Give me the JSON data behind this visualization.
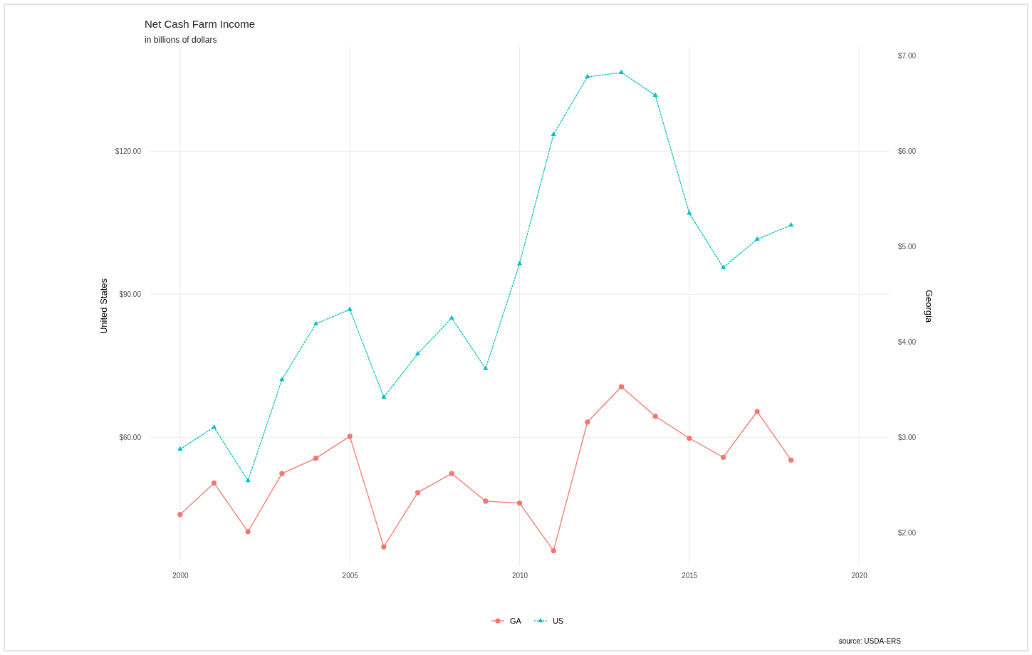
{
  "chart_data": {
    "type": "line",
    "title": "Net Cash Farm Income",
    "subtitle": "in billions of dollars",
    "ylabel": "United States",
    "y2label": "Georgia",
    "x": [
      2000,
      2001,
      2002,
      2003,
      2004,
      2005,
      2006,
      2007,
      2008,
      2009,
      2010,
      2011,
      2012,
      2013,
      2014,
      2015,
      2016,
      2017,
      2018
    ],
    "series": [
      {
        "name": "GA",
        "color": "#f8766d",
        "axis": "y2",
        "marker": "circle",
        "line_style": "solid",
        "values": [
          2.19,
          2.52,
          2.01,
          2.62,
          2.78,
          3.01,
          1.85,
          2.42,
          2.62,
          2.33,
          2.31,
          1.81,
          3.16,
          3.53,
          3.22,
          2.99,
          2.79,
          3.27,
          2.76
        ]
      },
      {
        "name": "US",
        "color": "#00bfc4",
        "axis": "y",
        "marker": "triangle",
        "line_style": "dotted",
        "values": [
          57.5,
          62.1,
          50.9,
          72.1,
          83.8,
          86.8,
          68.4,
          77.5,
          85.0,
          74.4,
          96.4,
          123.5,
          135.6,
          136.5,
          131.7,
          107.0,
          95.6,
          101.5,
          104.5
        ]
      }
    ],
    "xlim": [
      1999.1,
      2020.9
    ],
    "xticks": [
      2000,
      2005,
      2010,
      2015,
      2020
    ],
    "ylim": [
      33,
      142
    ],
    "yticks": [
      {
        "value": 60,
        "label": "$60.00"
      },
      {
        "value": 90,
        "label": "$90.00"
      },
      {
        "value": 120,
        "label": "$120.00"
      }
    ],
    "y2lim": [
      1.65,
      7.1
    ],
    "y2ticks": [
      {
        "value": 2,
        "label": "$2.00"
      },
      {
        "value": 3,
        "label": "$3.00"
      },
      {
        "value": 4,
        "label": "$4.00"
      },
      {
        "value": 5,
        "label": "$5.00"
      },
      {
        "value": 6,
        "label": "$6.00"
      },
      {
        "value": 7,
        "label": "$7.00"
      }
    ],
    "grid": true,
    "legend": "bottom",
    "annotations": [
      "source: USDA-ERS"
    ]
  }
}
